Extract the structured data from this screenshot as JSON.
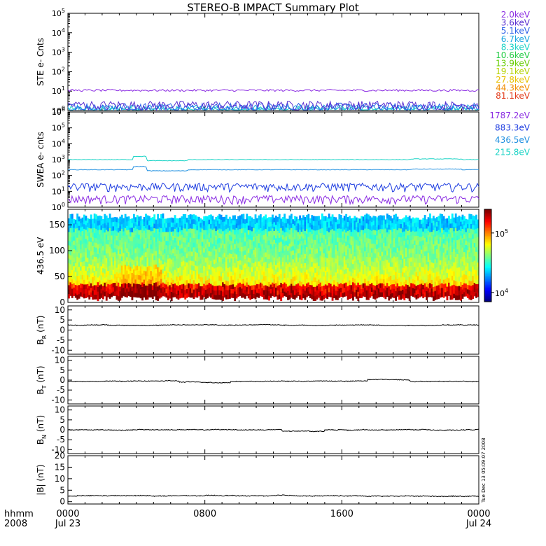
{
  "title": "STEREO-B IMPACT Summary Plot",
  "footer": {
    "hhmm_label": "hhmm",
    "year_label": "2008",
    "time_ticks": [
      "0000",
      "0800",
      "1600",
      "0000"
    ],
    "date_ticks": [
      "Jul 23",
      "",
      "",
      "Jul 24"
    ]
  },
  "stamp_text": "Tue Dec 13 05:09:07 2008",
  "colors": {
    "axis": "#000000",
    "trace": "#000000"
  },
  "chart_data": [
    {
      "type": "line",
      "name": "ste",
      "ylabel": "STE e- Cnts",
      "yscale": "log",
      "ylim": [
        1,
        100000
      ],
      "y_ticks": [
        1,
        10,
        100,
        1000,
        10000,
        100000
      ],
      "x_time_range": [
        "2008-07-23 00:00",
        "2008-07-24 00:00"
      ],
      "legend_entries": [
        {
          "label": "2.0keV",
          "color": "#8a2be2"
        },
        {
          "label": "3.6keV",
          "color": "#5a2fd0"
        },
        {
          "label": "5.1keV",
          "color": "#2a5fe8"
        },
        {
          "label": "6.7keV",
          "color": "#1aa6e0"
        },
        {
          "label": "8.3keV",
          "color": "#19d3c5"
        },
        {
          "label": "10.6keV",
          "color": "#22cc44"
        },
        {
          "label": "13.9keV",
          "color": "#66cc00"
        },
        {
          "label": "19.1keV",
          "color": "#b4d200"
        },
        {
          "label": "27.8keV",
          "color": "#e8c000"
        },
        {
          "label": "44.3keV",
          "color": "#f08c00"
        },
        {
          "label": "81.1keV",
          "color": "#e23a1a"
        }
      ],
      "series": [
        {
          "label": "2.0keV",
          "typical_value": 11
        },
        {
          "label": "3.6keV",
          "typical_value": 2
        },
        {
          "label": "5.1keV",
          "typical_value": 1.6
        },
        {
          "label": "6.7keV",
          "typical_value": 1.3
        },
        {
          "label": "8.3keV",
          "typical_value": 1.1
        }
      ]
    },
    {
      "type": "line",
      "name": "swea",
      "ylabel": "SWEA e- cnts",
      "yscale": "log",
      "ylim": [
        1,
        1000000
      ],
      "y_ticks": [
        1,
        10,
        100,
        1000,
        10000,
        100000,
        1000000
      ],
      "legend_entries": [
        {
          "label": "1787.2eV",
          "color": "#8a2be2"
        },
        {
          "label": "883.3eV",
          "color": "#1e3de0"
        },
        {
          "label": "436.5eV",
          "color": "#1e8fe0"
        },
        {
          "label": "215.8eV",
          "color": "#19d3c5"
        }
      ],
      "series": [
        {
          "label": "215.8eV",
          "typical_value": 1000
        },
        {
          "label": "436.5eV",
          "typical_value": 230
        },
        {
          "label": "883.3eV",
          "typical_value": 18
        },
        {
          "label": "1787.2eV",
          "typical_value": 3
        }
      ]
    },
    {
      "type": "heatmap",
      "name": "pad",
      "ylabel": "436.5 eV",
      "ylim": [
        0,
        180
      ],
      "y_ticks": [
        0,
        50,
        100,
        150
      ],
      "colorbar": {
        "scale": "log",
        "tick_labels": [
          "10^4",
          "10^5"
        ],
        "tick_values": [
          10000,
          100000
        ],
        "range": [
          7000,
          250000
        ]
      }
    },
    {
      "type": "line",
      "name": "br",
      "ylabel": "B_R (nT)",
      "ylim": [
        -12,
        12
      ],
      "y_ticks": [
        -10,
        -5,
        0,
        5,
        10
      ],
      "typical_value": 2.5
    },
    {
      "type": "line",
      "name": "bt",
      "ylabel": "B_T (nT)",
      "ylim": [
        -12,
        12
      ],
      "y_ticks": [
        -10,
        -5,
        0,
        5,
        10
      ],
      "typical_value": -0.5
    },
    {
      "type": "line",
      "name": "bn",
      "ylabel": "B_N (nT)",
      "ylim": [
        -12,
        12
      ],
      "y_ticks": [
        -10,
        -5,
        0,
        5,
        10
      ],
      "typical_value": 0
    },
    {
      "type": "line",
      "name": "bmag",
      "ylabel": "|B| (nT)",
      "ylim": [
        -1,
        20
      ],
      "y_ticks": [
        0,
        5,
        10,
        15,
        20
      ],
      "typical_value": 2.5
    }
  ]
}
